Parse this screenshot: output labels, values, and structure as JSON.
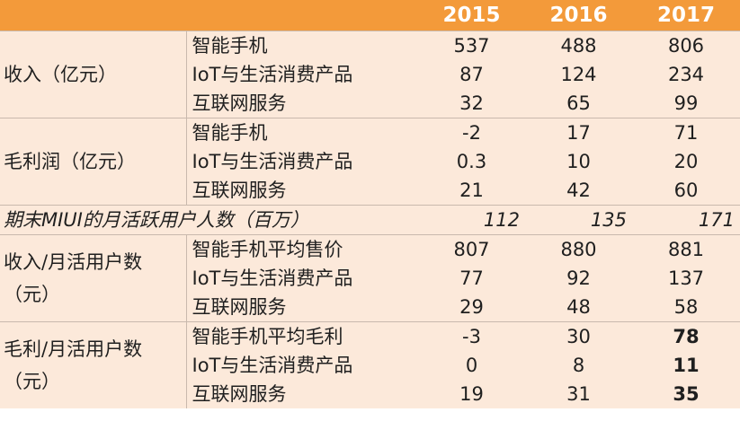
{
  "header": {
    "years": [
      "2015",
      "2016",
      "2017"
    ]
  },
  "groups": {
    "revenue": {
      "label": "收入（亿元）",
      "rows": [
        {
          "item": "智能手机",
          "values": [
            "537",
            "488",
            "806"
          ]
        },
        {
          "item": "IoT与生活消费产品",
          "values": [
            "87",
            "124",
            "234"
          ]
        },
        {
          "item": "互联网服务",
          "values": [
            "32",
            "65",
            "99"
          ]
        }
      ]
    },
    "gross_profit": {
      "label": "毛利润（亿元）",
      "rows": [
        {
          "item": "智能手机",
          "values": [
            "-2",
            "17",
            "71"
          ]
        },
        {
          "item": "IoT与生活消费产品",
          "values": [
            "0.3",
            "10",
            "20"
          ]
        },
        {
          "item": "互联网服务",
          "values": [
            "21",
            "42",
            "60"
          ]
        }
      ]
    },
    "mau": {
      "label": "期末MIUI的月活跃用户人数（百万）",
      "values": [
        "112",
        "135",
        "171"
      ]
    },
    "revenue_per_mau": {
      "label": "收入/月活用户数（元）",
      "rows": [
        {
          "item": "智能手机平均售价",
          "values": [
            "807",
            "880",
            "881"
          ]
        },
        {
          "item": "IoT与生活消费产品",
          "values": [
            "77",
            "92",
            "137"
          ]
        },
        {
          "item": "互联网服务",
          "values": [
            "29",
            "48",
            "58"
          ]
        }
      ]
    },
    "profit_per_mau": {
      "label": "毛利/月活用户数（元）",
      "rows": [
        {
          "item": "智能手机平均毛利",
          "values": [
            "-3",
            "30",
            "78"
          ]
        },
        {
          "item": "IoT与生活消费产品",
          "values": [
            "0",
            "8",
            "11"
          ]
        },
        {
          "item": "互联网服务",
          "values": [
            "19",
            "31",
            "35"
          ]
        }
      ]
    }
  },
  "colors": {
    "header_bg": "#f39a3a",
    "body_bg": "#fce9da",
    "header_text": "#ffffff"
  }
}
